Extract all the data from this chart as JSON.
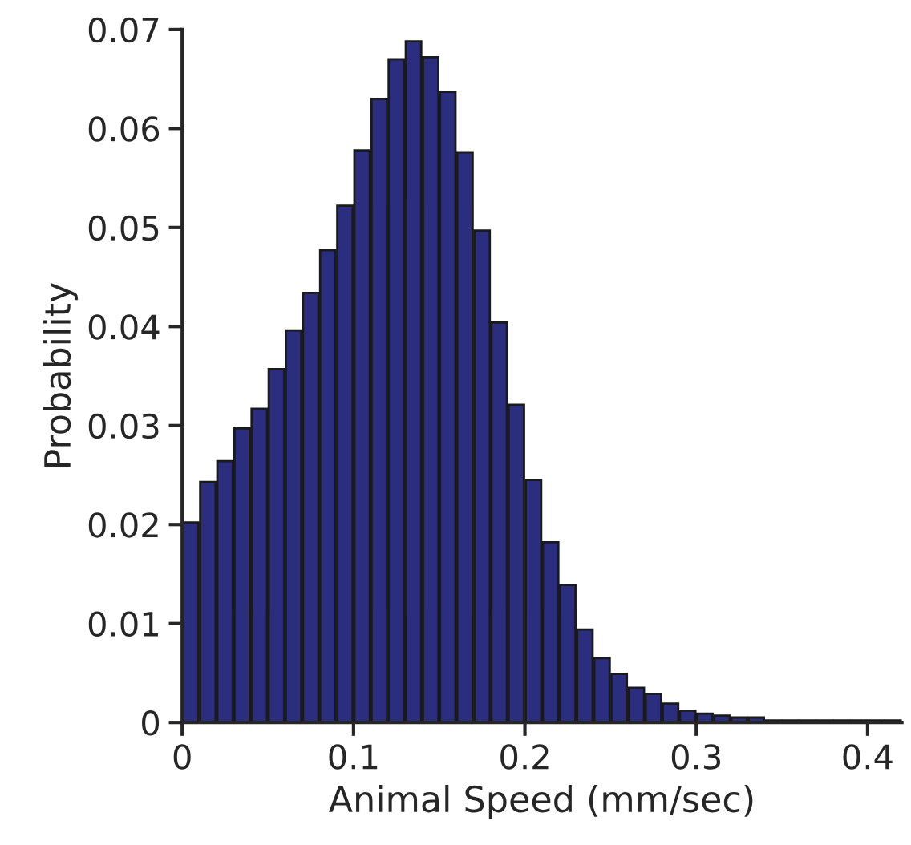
{
  "chart_data": {
    "type": "histogram",
    "xlabel": "Animal Speed (mm/sec)",
    "ylabel": "Probability",
    "bins": [
      0,
      0.01,
      0.02,
      0.03,
      0.04,
      0.05,
      0.06,
      0.07,
      0.08,
      0.09,
      0.1,
      0.11,
      0.12,
      0.13,
      0.14,
      0.15,
      0.16,
      0.17,
      0.18,
      0.19,
      0.2,
      0.21,
      0.22,
      0.23,
      0.24,
      0.25,
      0.26,
      0.27,
      0.28,
      0.29,
      0.3,
      0.31,
      0.32,
      0.33,
      0.34,
      0.35,
      0.36,
      0.37,
      0.38,
      0.39,
      0.4,
      0.41,
      0.42
    ],
    "values": [
      0.0202,
      0.0243,
      0.0264,
      0.0297,
      0.0317,
      0.0357,
      0.0396,
      0.0434,
      0.0477,
      0.0522,
      0.0578,
      0.063,
      0.067,
      0.0688,
      0.0672,
      0.0637,
      0.0576,
      0.0497,
      0.0404,
      0.0321,
      0.0245,
      0.0182,
      0.0139,
      0.0094,
      0.0065,
      0.0049,
      0.0035,
      0.0029,
      0.0019,
      0.0012,
      0.0009,
      0.0007,
      0.0005,
      0.0005,
      0.0002,
      0.0002,
      0.0002,
      0.0002,
      0.0002,
      0.0002,
      0.0002,
      0.0002
    ],
    "color": "#2b2d7e",
    "xlim": [
      0,
      0.42
    ],
    "xticks": [
      0,
      0.1,
      0.2,
      0.3,
      0.4
    ],
    "ylim": [
      0,
      0.07
    ],
    "yticks": [
      0,
      0.01,
      0.02,
      0.03,
      0.04,
      0.05,
      0.06,
      0.07
    ],
    "grid": false,
    "legend": false
  }
}
